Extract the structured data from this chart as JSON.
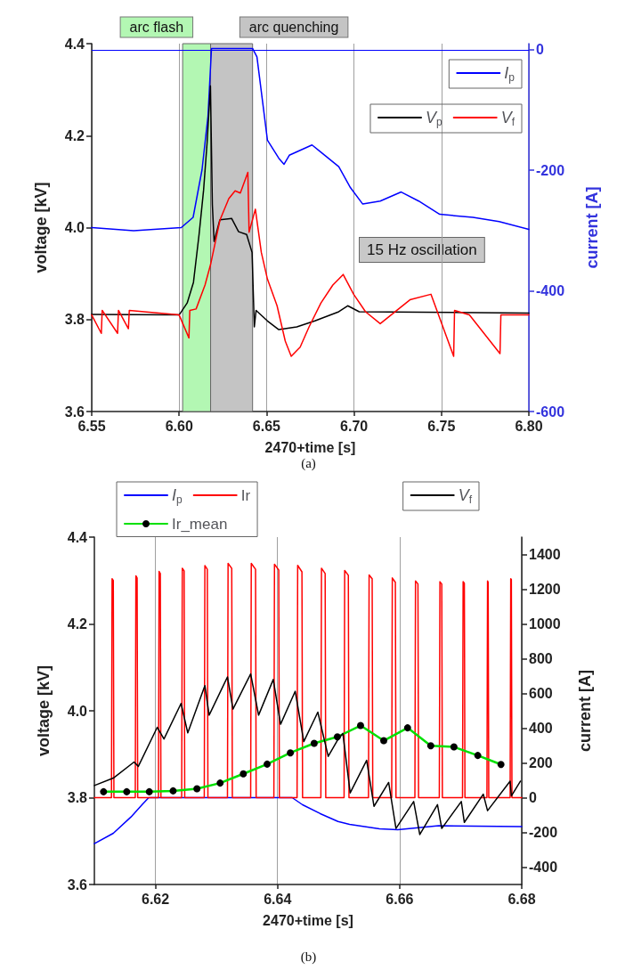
{
  "chart_data": [
    {
      "type": "line",
      "xlabel": "2470+time [s]",
      "ylabel": "voltage [kV]",
      "y2label": "current [A]",
      "xlim": [
        6.55,
        6.8
      ],
      "xticks": [
        6.55,
        {
          "value": 6.6,
          "label": "6.60"
        },
        6.65,
        {
          "value": 6.7,
          "label": "6.70"
        },
        6.75,
        {
          "value": 6.8,
          "label": "6.80"
        }
      ],
      "ylim": [
        3.6,
        4.4
      ],
      "yticks": [
        3.6,
        3.8,
        {
          "value": 4,
          "label": "4.0"
        },
        4.2,
        4.4
      ],
      "y2lim": [
        -600,
        10
      ],
      "y2ticks": [
        -600,
        -400,
        -200,
        0
      ],
      "grid": "x",
      "legend": "top right",
      "marker": "none",
      "line_style": "solid",
      "bands": [
        {
          "axis": "x",
          "from": 6.602,
          "to": 6.618,
          "label": "arc flash",
          "color": "#b3f7b3"
        },
        {
          "axis": "x",
          "from": 6.618,
          "to": 6.642,
          "label": "arc quenching",
          "color": "#c4c4c4"
        }
      ],
      "ref_lines": [
        {
          "axis": "y2",
          "value": 0,
          "color": "#0000ff"
        }
      ],
      "annotations": [
        "15 Hz oscillation",
        "(a)"
      ],
      "series": [
        {
          "name": "I$_{p}$",
          "color": "#0000ff",
          "axis": "y2",
          "x": [
            6.55,
            6.574,
            6.6012,
            6.608,
            6.6131,
            6.6165,
            6.6185,
            6.642,
            6.6445,
            6.6505,
            6.657,
            6.66,
            6.663,
            6.676,
            6.6811,
            6.6913,
            6.698,
            6.705,
            6.715,
            6.727,
            6.737,
            6.749,
            6.768,
            6.783,
            6.8
          ],
          "values": [
            -295,
            -300,
            -295,
            -278,
            -199,
            -110,
            2,
            2,
            -12,
            -150,
            -180,
            -190,
            -175,
            -158,
            -170,
            -194,
            -229,
            -256,
            -251,
            -236,
            -251,
            -273,
            -278,
            -285,
            -298
          ]
        },
        {
          "name": "V$_{p}$",
          "color": "#000000",
          "axis": "y",
          "x": [
            6.55,
            6.6,
            6.6046,
            6.6082,
            6.6114,
            6.614,
            6.616,
            6.6179,
            6.619,
            6.62,
            6.6233,
            6.63,
            6.634,
            6.6386,
            6.6417,
            6.643,
            6.644,
            6.6505,
            6.657,
            6.6673,
            6.6776,
            6.6913,
            6.6964,
            6.703,
            6.8
          ],
          "values": [
            3.811,
            3.81,
            3.836,
            3.881,
            3.985,
            4.082,
            4.185,
            4.308,
            4.05,
            3.97,
            4.017,
            4.02,
            3.991,
            3.985,
            3.946,
            3.784,
            3.82,
            3.797,
            3.778,
            3.784,
            3.797,
            3.817,
            3.83,
            3.817,
            3.814
          ]
        },
        {
          "name": "V$_{f}$",
          "color": "#ff0000",
          "axis": "y",
          "x": [
            6.55,
            6.5555,
            6.556,
            6.5648,
            6.5653,
            6.571,
            6.5715,
            6.6,
            6.6056,
            6.6061,
            6.6097,
            6.6148,
            6.618,
            6.6234,
            6.6284,
            6.632,
            6.635,
            6.6393,
            6.64,
            6.6436,
            6.647,
            6.6505,
            6.656,
            6.6607,
            6.6641,
            6.6692,
            6.6743,
            6.6811,
            6.6879,
            6.6913,
            6.6938,
            6.6998,
            6.7066,
            6.715,
            6.732,
            6.744,
            6.757,
            6.7575,
            6.766,
            6.7835,
            6.784,
            6.8
          ],
          "values": [
            3.81,
            3.77,
            3.82,
            3.77,
            3.82,
            3.78,
            3.82,
            3.81,
            3.76,
            3.82,
            3.823,
            3.875,
            3.92,
            4.017,
            4.063,
            4.08,
            4.075,
            4.12,
            3.99,
            4.04,
            3.946,
            3.888,
            3.83,
            3.753,
            3.72,
            3.74,
            3.784,
            3.836,
            3.875,
            3.888,
            3.898,
            3.855,
            3.817,
            3.791,
            3.843,
            3.855,
            3.72,
            3.82,
            3.81,
            3.726,
            3.81,
            3.81
          ]
        }
      ]
    },
    {
      "type": "line",
      "xlabel": "2470+time [s]",
      "ylabel": "voltage [kV]",
      "y2label": "current [A]",
      "xlim": [
        6.61,
        6.68
      ],
      "xticks": [
        6.62,
        6.64,
        6.66,
        6.68
      ],
      "ylim": [
        3.6,
        4.4
      ],
      "yticks": [
        3.6,
        3.8,
        {
          "value": 4,
          "label": "4.0"
        },
        4.2,
        4.4
      ],
      "y2lim": [
        -500,
        1500
      ],
      "y2ticks": [
        -400,
        -200,
        0,
        200,
        400,
        600,
        800,
        1000,
        1200,
        1400
      ],
      "grid": "x",
      "legend": "top",
      "marker": "none",
      "line_style": "solid",
      "annotations": [
        "(b)"
      ],
      "series": [
        {
          "name": "I$_{p}$",
          "color": "#0000ff",
          "axis": "y2",
          "x": [
            6.61,
            6.6131,
            6.616,
            6.6178,
            6.6189,
            6.64,
            6.6424,
            6.6441,
            6.647,
            6.6499,
            6.6518,
            6.6567,
            6.6597,
            6.6664,
            6.68
          ],
          "values": [
            -265,
            -205,
            -111,
            -41,
            0,
            0,
            0,
            -41,
            -92,
            -137,
            -154,
            -179,
            -184,
            -162,
            -167
          ]
        },
        {
          "name": "Ir",
          "color": "#ff0000",
          "axis": "y2",
          "x": [
            6.61,
            6.6128,
            6.6129,
            6.6131,
            6.6132,
            6.6167,
            6.6168,
            6.617,
            6.6171,
            6.6205,
            6.6206,
            6.6208,
            6.6209,
            6.6243,
            6.6244,
            6.6247,
            6.6248,
            6.628,
            6.6281,
            6.6285,
            6.6286,
            6.6318,
            6.6319,
            6.6325,
            6.6326,
            6.6356,
            6.6357,
            6.6364,
            6.6365,
            6.6394,
            6.6395,
            6.6402,
            6.6403,
            6.6432,
            6.6433,
            6.644,
            6.6441,
            6.6471,
            6.6472,
            6.6478,
            6.6479,
            6.6509,
            6.651,
            6.6516,
            6.6517,
            6.6549,
            6.655,
            6.6555,
            6.6556,
            6.6587,
            6.6588,
            6.6593,
            6.6594,
            6.6625,
            6.6626,
            6.663,
            6.6631,
            6.6665,
            6.6666,
            6.6669,
            6.667,
            6.6703,
            6.6704,
            6.6706,
            6.6707,
            6.6743,
            6.6744,
            6.6745,
            6.6746,
            6.6781,
            6.6782,
            6.6783,
            6.6784,
            6.68
          ],
          "values": [
            0,
            0,
            1260,
            1250,
            0,
            0,
            1277,
            1265,
            0,
            0,
            1302,
            1290,
            0,
            0,
            1321,
            1305,
            0,
            0,
            1336,
            1315,
            0,
            0,
            1349,
            1320,
            0,
            0,
            1349,
            1315,
            0,
            0,
            1344,
            1310,
            0,
            0,
            1337,
            1300,
            0,
            0,
            1321,
            1290,
            0,
            0,
            1308,
            1280,
            0,
            0,
            1282,
            1260,
            0,
            0,
            1265,
            1240,
            0,
            0,
            1248,
            1230,
            0,
            0,
            1243,
            1230,
            0,
            0,
            1243,
            1235,
            0,
            0,
            1248,
            1240,
            0,
            0,
            1260,
            1255,
            0,
            0
          ]
        },
        {
          "name": "Ir_mean",
          "color": "#00e000",
          "axis": "y2",
          "marker": "circle",
          "x": [
            6.6115,
            6.6153,
            6.619,
            6.6229,
            6.6268,
            6.6306,
            6.6344,
            6.6383,
            6.6421,
            6.646,
            6.6498,
            6.6536,
            6.6574,
            6.6613,
            6.6651,
            6.6689,
            6.6728,
            6.6766
          ],
          "values": [
            34,
            34,
            34,
            39,
            51,
            84,
            137,
            193,
            258,
            313,
            350,
            415,
            328,
            402,
            299,
            292,
            243,
            191
          ]
        },
        {
          "name": "V$_{f}$",
          "color": "#000000",
          "axis": "y",
          "x": [
            6.61,
            6.6131,
            6.6165,
            6.6172,
            6.6203,
            6.6214,
            6.6242,
            6.6253,
            6.6281,
            6.6288,
            6.6318,
            6.6327,
            6.6356,
            6.6369,
            6.6393,
            6.6405,
            6.6429,
            6.6443,
            6.6466,
            6.6483,
            6.6499,
            6.6507,
            6.6519,
            6.6546,
            6.6558,
            6.6582,
            6.6594,
            6.6623,
            6.6633,
            6.6662,
            6.6669,
            6.6701,
            6.6706,
            6.6737,
            6.6744,
            6.6781,
            6.6783,
            6.6798
          ],
          "values": [
            3.828,
            3.845,
            3.882,
            3.872,
            3.962,
            3.935,
            4.017,
            3.949,
            4.058,
            3.99,
            4.078,
            4.004,
            4.085,
            3.99,
            4.072,
            3.969,
            4.045,
            3.929,
            3.997,
            3.895,
            3.934,
            3.948,
            3.811,
            3.886,
            3.78,
            3.835,
            3.729,
            3.791,
            3.715,
            3.784,
            3.729,
            3.791,
            3.743,
            3.808,
            3.77,
            3.838,
            3.804,
            3.838
          ]
        }
      ]
    }
  ]
}
